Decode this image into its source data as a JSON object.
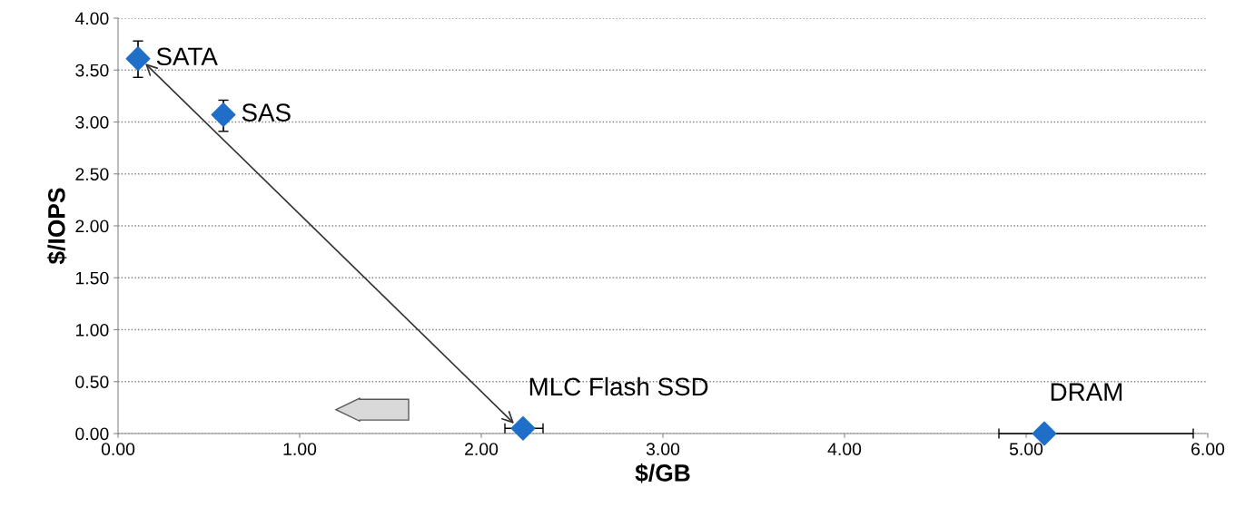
{
  "chart_data": {
    "type": "scatter",
    "xlabel": "$/GB",
    "ylabel": "$/IOPS",
    "x": [
      0.11,
      0.58,
      2.23,
      5.1
    ],
    "series": [
      {
        "color": "#1f6fc8",
        "values": [
          3.61,
          3.07,
          0.05,
          0.0
        ],
        "errors": [
          [
            3.43,
            3.78
          ],
          [
            2.91,
            3.21
          ],
          null,
          null
        ],
        "xerrors": [
          null,
          null,
          [
            2.13,
            2.34
          ],
          [
            4.85,
            5.92
          ]
        ]
      }
    ],
    "annotations": [
      {
        "text": "SATA",
        "x": 0.11,
        "y": 3.61
      },
      {
        "text": "SAS",
        "x": 0.58,
        "y": 3.07
      },
      {
        "text": "MLC Flash SSD",
        "x": 2.23,
        "y": 0.05
      },
      {
        "text": "DRAM",
        "x": 5.1,
        "y": 0.0
      }
    ],
    "xlim": [
      0,
      6
    ],
    "ylim": [
      0,
      4
    ],
    "xticks": [
      {
        "value": 0,
        "label": "0.00"
      },
      {
        "value": 1,
        "label": "1.00"
      },
      {
        "value": 2,
        "label": "2.00"
      },
      {
        "value": 3,
        "label": "3.00"
      },
      {
        "value": 4,
        "label": "4.00"
      },
      {
        "value": 5,
        "label": "5.00"
      },
      {
        "value": 6,
        "label": "6.00"
      }
    ],
    "yticks": [
      {
        "value": 0,
        "label": "0.00"
      },
      {
        "value": 0.5,
        "label": "0.50"
      },
      {
        "value": 1,
        "label": "1.00"
      },
      {
        "value": 1.5,
        "label": "1.50"
      },
      {
        "value": 2,
        "label": "2.00"
      },
      {
        "value": 2.5,
        "label": "2.50"
      },
      {
        "value": 3,
        "label": "3.00"
      },
      {
        "value": 3.5,
        "label": "3.50"
      },
      {
        "value": 4,
        "label": "4.00"
      }
    ],
    "grid": "y",
    "marker": "diamond"
  }
}
